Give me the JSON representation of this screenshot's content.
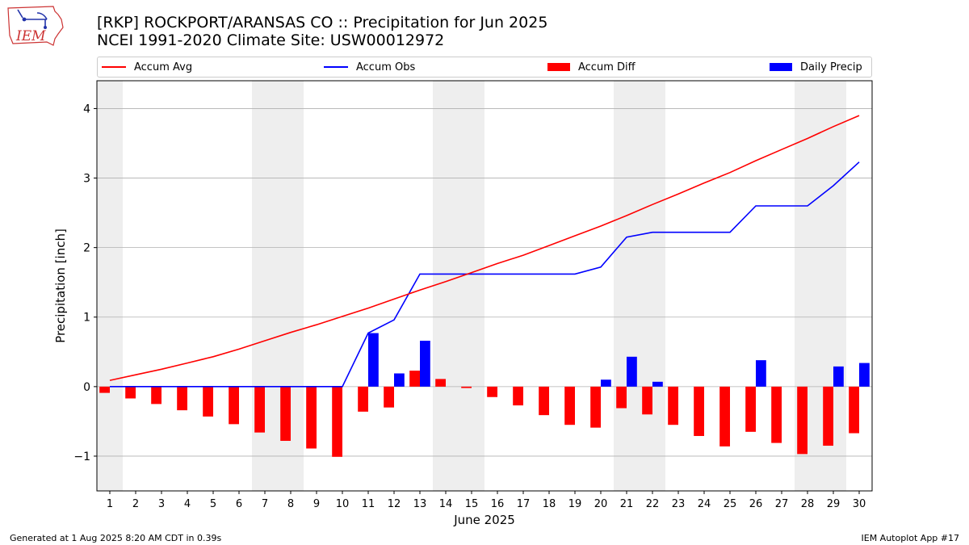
{
  "header": {
    "title_line1": "[RKP] ROCKPORT/ARANSAS CO :: Precipitation for Jun 2025",
    "title_line2": "NCEI 1991-2020 Climate Site: USW00012972",
    "logo_text": "IEM"
  },
  "legend": {
    "accum_avg": "Accum Avg",
    "accum_obs": "Accum Obs",
    "accum_diff": "Accum Diff",
    "daily_precip": "Daily Precip"
  },
  "footer": {
    "left": "Generated at 1 Aug 2025 8:20 AM CDT in 0.39s",
    "right": "IEM Autoplot App #17"
  },
  "colors": {
    "accum_avg": "#ff0000",
    "accum_obs": "#0000ff",
    "accum_diff": "#ff0000",
    "daily_precip": "#0000ff",
    "weekend_shade": "#eeeeee",
    "grid": "#b0b0b0"
  },
  "chart_data": {
    "type": "bar",
    "xlabel": "June 2025",
    "ylabel": "Precipitation [inch]",
    "ylim": [
      -1.5,
      4.4
    ],
    "yticks": [
      -1,
      0,
      1,
      2,
      3,
      4
    ],
    "ytick_labels": [
      "−1",
      "0",
      "1",
      "2",
      "3",
      "4"
    ],
    "grid": "horizontal",
    "legend_position": "top",
    "x": [
      "1",
      "2",
      "3",
      "4",
      "5",
      "6",
      "7",
      "8",
      "9",
      "10",
      "11",
      "12",
      "13",
      "14",
      "15",
      "16",
      "17",
      "18",
      "19",
      "20",
      "21",
      "22",
      "23",
      "24",
      "25",
      "26",
      "27",
      "28",
      "29",
      "30"
    ],
    "weekend_days": [
      1,
      7,
      8,
      14,
      15,
      21,
      22,
      28,
      29
    ],
    "series": [
      {
        "name": "Accum Avg",
        "kind": "line",
        "values": [
          0.09,
          0.17,
          0.25,
          0.34,
          0.43,
          0.54,
          0.66,
          0.78,
          0.89,
          1.01,
          1.13,
          1.26,
          1.39,
          1.51,
          1.64,
          1.77,
          1.89,
          2.03,
          2.17,
          2.31,
          2.46,
          2.62,
          2.77,
          2.93,
          3.08,
          3.25,
          3.41,
          3.57,
          3.74,
          3.9
        ]
      },
      {
        "name": "Accum Obs",
        "kind": "line",
        "values": [
          0,
          0,
          0,
          0,
          0,
          0,
          0,
          0,
          0,
          0,
          0.77,
          0.96,
          1.62,
          1.62,
          1.62,
          1.62,
          1.62,
          1.62,
          1.62,
          1.72,
          2.15,
          2.22,
          2.22,
          2.22,
          2.22,
          2.6,
          2.6,
          2.6,
          2.89,
          3.23
        ]
      },
      {
        "name": "Accum Diff",
        "kind": "bar",
        "values": [
          -0.09,
          -0.17,
          -0.25,
          -0.34,
          -0.43,
          -0.54,
          -0.66,
          -0.78,
          -0.89,
          -1.01,
          -0.36,
          -0.3,
          0.23,
          0.11,
          -0.02,
          -0.15,
          -0.27,
          -0.41,
          -0.55,
          -0.59,
          -0.31,
          -0.4,
          -0.55,
          -0.71,
          -0.86,
          -0.65,
          -0.81,
          -0.97,
          -0.85,
          -0.67
        ]
      },
      {
        "name": "Daily Precip",
        "kind": "bar",
        "values": [
          0,
          0,
          0,
          0,
          0,
          0,
          0,
          0,
          0,
          0,
          0.77,
          0.19,
          0.66,
          0,
          0,
          0,
          0,
          0,
          0,
          0.1,
          0.43,
          0.07,
          0,
          0,
          0,
          0.38,
          0,
          0,
          0.29,
          0.34
        ]
      }
    ]
  }
}
